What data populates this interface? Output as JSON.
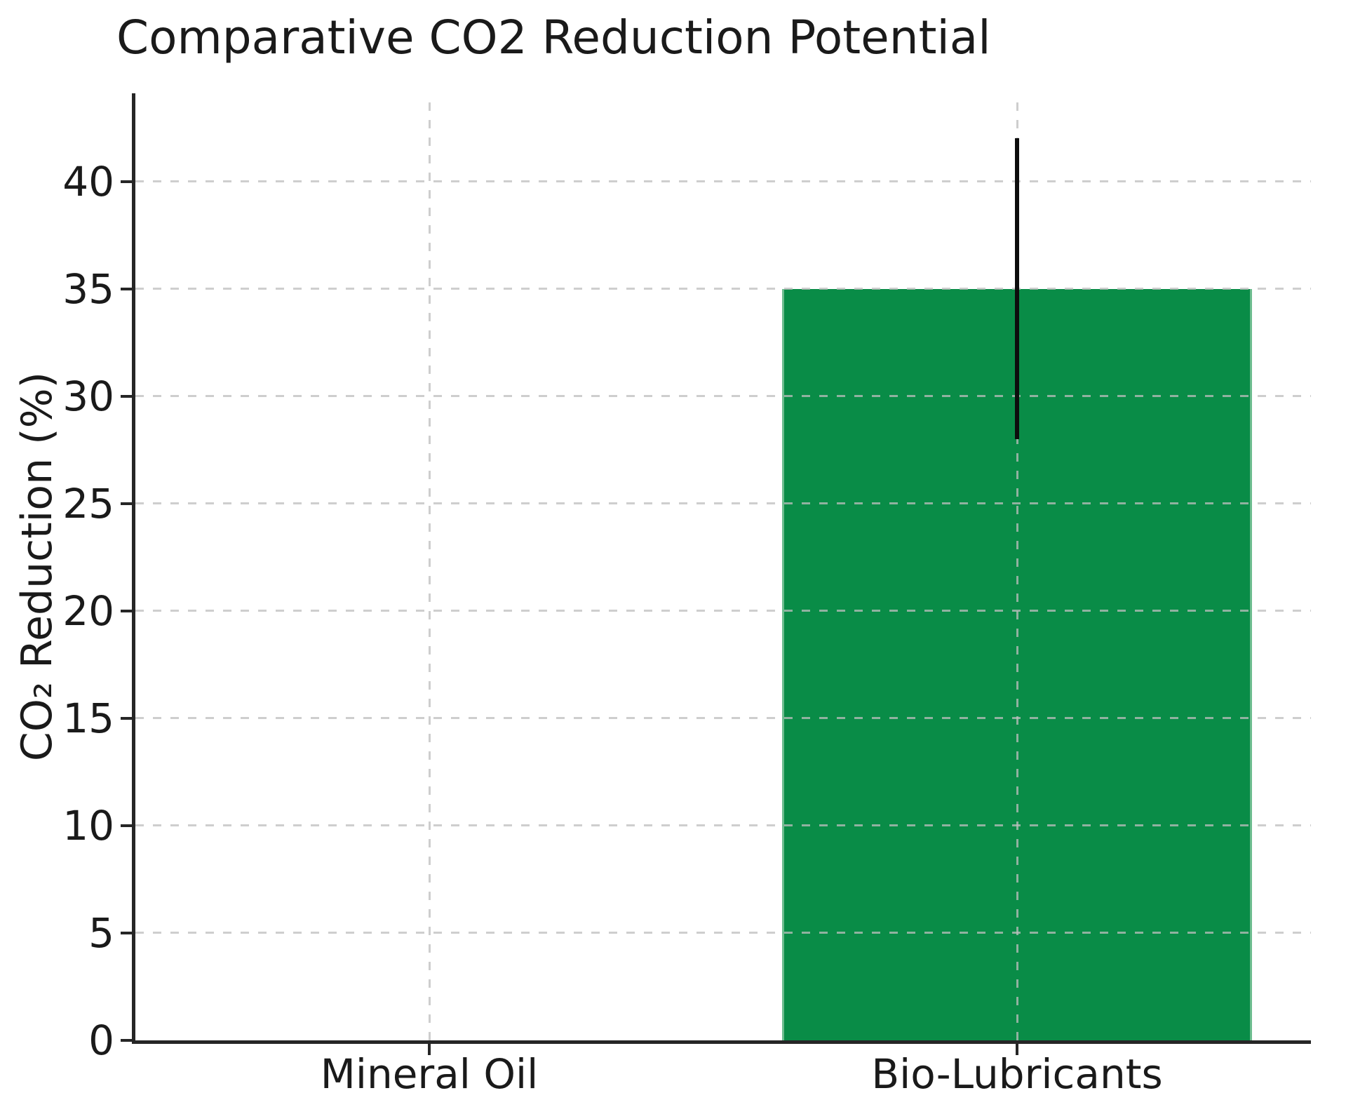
{
  "chart_data": {
    "type": "bar",
    "title": "Comparative CO2 Reduction Potential",
    "xlabel": "",
    "ylabel": "CO₂ Reduction (%)",
    "categories": [
      "Mineral Oil",
      "Bio-Lubricants"
    ],
    "values": [
      0,
      35
    ],
    "errors": [
      0,
      7
    ],
    "error_range_bio_lubricants": [
      28,
      42
    ],
    "yticks": [
      0,
      5,
      10,
      15,
      20,
      25,
      30,
      35,
      40
    ],
    "ytick_labels": [
      "0",
      "5",
      "10",
      "15",
      "20",
      "25",
      "30",
      "35",
      "40"
    ],
    "ylim": [
      0,
      44.1
    ],
    "grid": "dashed, horizontal at each ytick and vertical at each category center, drawn above bars",
    "legend": false,
    "bar_width_fraction_of_plot": 0.4
  },
  "colors": {
    "bar_fill": "#098c47",
    "bar_edge": "#6dbd8f",
    "error_bar": "#0d0d0d",
    "grid": "rgba(190,190,190,0.75)",
    "spine": "#262626",
    "text": "#1a1a1a",
    "background": "#ffffff"
  }
}
